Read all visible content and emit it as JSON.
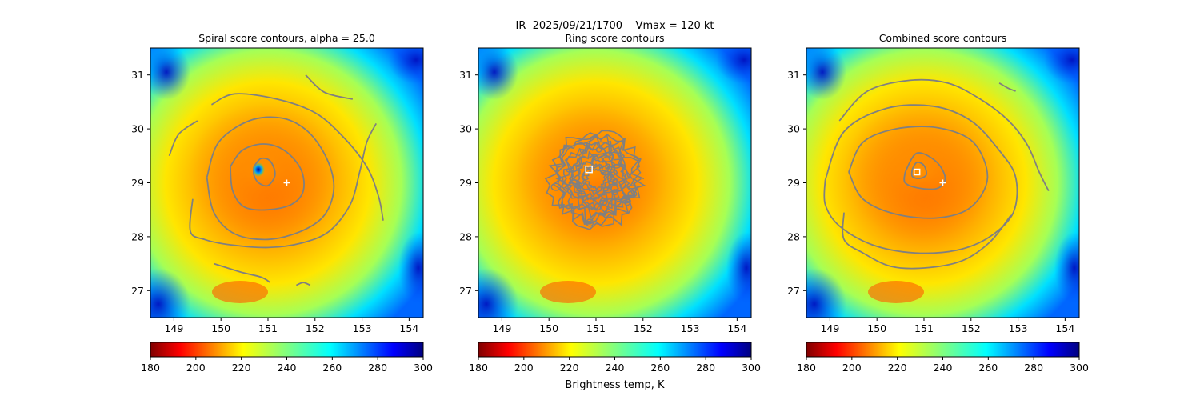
{
  "figure": {
    "suptitle": "IR  2025/09/21/1700    Vmax = 120 kt",
    "colorbar_label": "Brightness temp, K"
  },
  "chart_data": [
    {
      "type": "heatmap",
      "title": "Spiral score contours, alpha = 25.0",
      "xlim": [
        148.5,
        154.3
      ],
      "ylim": [
        26.5,
        31.5
      ],
      "xticks": [
        149,
        150,
        151,
        152,
        153,
        154
      ],
      "yticks": [
        27,
        28,
        29,
        30,
        31
      ],
      "colorbar": {
        "min": 180,
        "max": 300,
        "ticks": [
          180,
          200,
          220,
          240,
          260,
          280,
          300
        ],
        "cmap": "jet_r"
      },
      "storm_center": [
        151.4,
        29.0
      ],
      "score_max": [
        150.85,
        29.25
      ],
      "contour_color": "#808080",
      "contours": [
        [
          [
            150.7,
            29.3
          ],
          [
            150.85,
            29.45
          ],
          [
            151.05,
            29.4
          ],
          [
            151.15,
            29.15
          ],
          [
            151.0,
            28.95
          ],
          [
            150.8,
            29.0
          ],
          [
            150.7,
            29.15
          ],
          [
            150.7,
            29.3
          ]
        ],
        [
          [
            150.2,
            29.3
          ],
          [
            150.45,
            29.6
          ],
          [
            150.9,
            29.72
          ],
          [
            151.35,
            29.6
          ],
          [
            151.7,
            29.25
          ],
          [
            151.75,
            28.85
          ],
          [
            151.5,
            28.6
          ],
          [
            151.0,
            28.5
          ],
          [
            150.5,
            28.55
          ],
          [
            150.25,
            28.85
          ],
          [
            150.2,
            29.3
          ]
        ],
        [
          [
            149.7,
            29.1
          ],
          [
            149.95,
            29.75
          ],
          [
            150.6,
            30.15
          ],
          [
            151.3,
            30.2
          ],
          [
            151.85,
            29.95
          ],
          [
            152.25,
            29.45
          ],
          [
            152.4,
            28.9
          ],
          [
            152.2,
            28.4
          ],
          [
            151.7,
            28.1
          ],
          [
            151.0,
            27.95
          ],
          [
            150.3,
            28.05
          ],
          [
            149.85,
            28.45
          ],
          [
            149.7,
            29.1
          ]
        ],
        [
          [
            149.8,
            30.45
          ],
          [
            150.3,
            30.65
          ],
          [
            151.2,
            30.55
          ],
          [
            152.0,
            30.3
          ],
          [
            152.6,
            29.85
          ],
          [
            153.1,
            29.3
          ],
          [
            153.35,
            28.75
          ],
          [
            153.45,
            28.3
          ]
        ],
        [
          [
            148.9,
            29.5
          ],
          [
            149.1,
            29.9
          ],
          [
            149.5,
            30.15
          ]
        ],
        [
          [
            149.4,
            28.7
          ],
          [
            149.35,
            28.1
          ],
          [
            149.65,
            27.95
          ],
          [
            150.2,
            27.85
          ],
          [
            151.0,
            27.8
          ],
          [
            151.7,
            27.88
          ],
          [
            152.3,
            28.1
          ],
          [
            152.75,
            28.6
          ],
          [
            152.95,
            29.2
          ],
          [
            153.1,
            29.75
          ],
          [
            153.3,
            30.1
          ]
        ],
        [
          [
            151.8,
            31.0
          ],
          [
            152.2,
            30.68
          ],
          [
            152.8,
            30.55
          ]
        ],
        [
          [
            149.85,
            27.5
          ],
          [
            150.4,
            27.35
          ],
          [
            150.85,
            27.25
          ],
          [
            151.05,
            27.15
          ]
        ],
        [
          [
            151.6,
            27.1
          ],
          [
            151.75,
            27.15
          ],
          [
            151.9,
            27.1
          ]
        ]
      ]
    },
    {
      "type": "heatmap",
      "title": "Ring score contours",
      "xlim": [
        148.5,
        154.3
      ],
      "ylim": [
        26.5,
        31.5
      ],
      "xticks": [
        149,
        150,
        151,
        152,
        153,
        154
      ],
      "yticks": [
        27,
        28,
        29,
        30,
        31
      ],
      "colorbar": {
        "min": 180,
        "max": 300,
        "ticks": [
          180,
          200,
          220,
          240,
          260,
          280,
          300
        ],
        "cmap": "jet_r"
      },
      "ring_center": [
        150.85,
        29.25
      ],
      "ring_extent": {
        "x": [
          150.05,
          151.95
        ],
        "y": [
          28.2,
          29.95
        ]
      },
      "contour_color": "#808080"
    },
    {
      "type": "heatmap",
      "title": "Combined score contours",
      "xlim": [
        148.5,
        154.3
      ],
      "ylim": [
        26.5,
        31.5
      ],
      "xticks": [
        149,
        150,
        151,
        152,
        153,
        154
      ],
      "yticks": [
        27,
        28,
        29,
        30,
        31
      ],
      "colorbar": {
        "min": 180,
        "max": 300,
        "ticks": [
          180,
          200,
          220,
          240,
          260,
          280,
          300
        ],
        "cmap": "jet_r"
      },
      "storm_center": [
        151.4,
        29.0
      ],
      "score_max": [
        150.85,
        29.2
      ],
      "contour_color": "#808080",
      "contours": [
        [
          [
            150.75,
            29.25
          ],
          [
            150.85,
            29.38
          ],
          [
            151.0,
            29.32
          ],
          [
            151.05,
            29.15
          ],
          [
            150.9,
            29.08
          ],
          [
            150.75,
            29.12
          ],
          [
            150.75,
            29.25
          ]
        ],
        [
          [
            150.6,
            29.2
          ],
          [
            150.85,
            29.55
          ],
          [
            151.25,
            29.4
          ],
          [
            151.45,
            29.1
          ],
          [
            151.3,
            28.9
          ],
          [
            150.9,
            28.9
          ],
          [
            150.6,
            29.0
          ],
          [
            150.6,
            29.2
          ]
        ],
        [
          [
            149.4,
            29.2
          ],
          [
            149.7,
            29.75
          ],
          [
            150.4,
            30.0
          ],
          [
            151.3,
            30.02
          ],
          [
            152.05,
            29.75
          ],
          [
            152.35,
            29.1
          ],
          [
            152.0,
            28.55
          ],
          [
            151.3,
            28.35
          ],
          [
            150.4,
            28.42
          ],
          [
            149.7,
            28.7
          ],
          [
            149.4,
            29.2
          ]
        ],
        [
          [
            148.9,
            29.05
          ],
          [
            149.3,
            29.95
          ],
          [
            150.2,
            30.38
          ],
          [
            151.2,
            30.42
          ],
          [
            152.0,
            30.15
          ],
          [
            152.6,
            29.6
          ],
          [
            152.95,
            29.1
          ],
          [
            152.9,
            28.45
          ],
          [
            152.4,
            28.0
          ],
          [
            151.7,
            27.75
          ],
          [
            150.8,
            27.7
          ],
          [
            149.9,
            27.85
          ],
          [
            149.2,
            28.2
          ],
          [
            148.9,
            28.6
          ],
          [
            148.9,
            29.05
          ]
        ],
        [
          [
            149.2,
            30.15
          ],
          [
            149.8,
            30.7
          ],
          [
            150.7,
            30.9
          ],
          [
            151.5,
            30.85
          ],
          [
            152.2,
            30.55
          ],
          [
            152.8,
            30.15
          ],
          [
            153.2,
            29.7
          ],
          [
            153.45,
            29.2
          ],
          [
            153.65,
            28.85
          ]
        ],
        [
          [
            149.3,
            28.45
          ],
          [
            149.3,
            27.95
          ],
          [
            149.7,
            27.7
          ],
          [
            150.3,
            27.45
          ],
          [
            151.0,
            27.42
          ],
          [
            151.8,
            27.55
          ],
          [
            152.4,
            27.9
          ],
          [
            152.85,
            28.4
          ]
        ],
        [
          [
            152.6,
            30.85
          ],
          [
            152.8,
            30.75
          ],
          [
            152.95,
            30.7
          ]
        ]
      ]
    }
  ]
}
